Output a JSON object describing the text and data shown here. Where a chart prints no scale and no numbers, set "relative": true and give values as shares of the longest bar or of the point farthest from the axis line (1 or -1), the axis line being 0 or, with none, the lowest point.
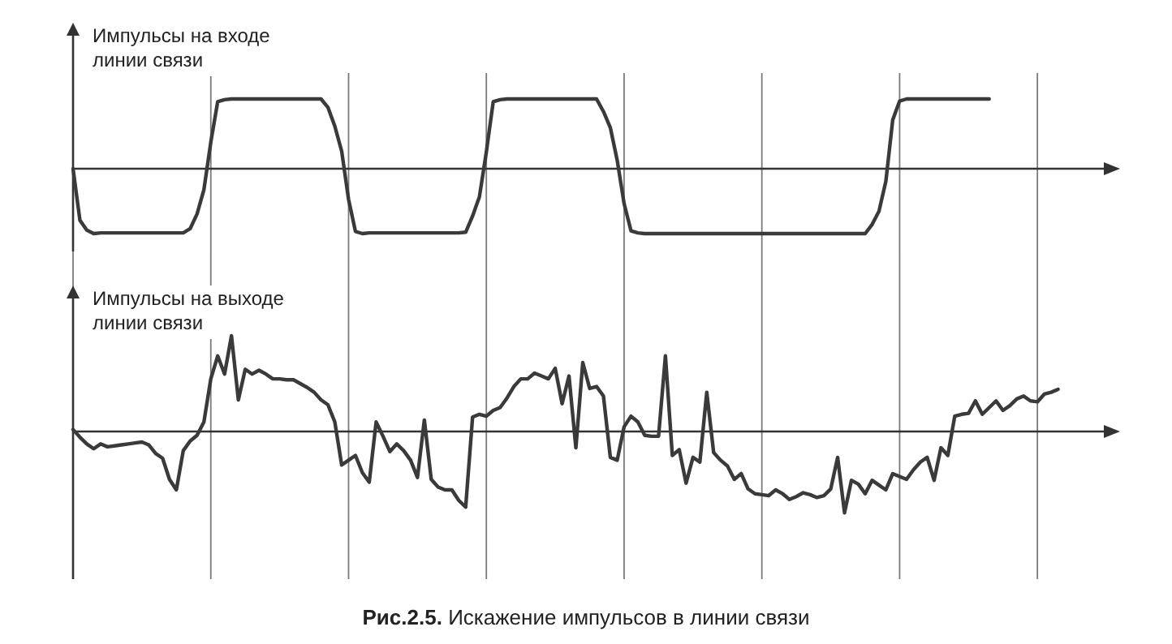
{
  "chart_data": [
    {
      "type": "line",
      "ylabel": "Импульсы на входе линии связи",
      "relative": true,
      "grid": "x",
      "color": "#3a3a3a",
      "categories": [
        null,
        null,
        null,
        null,
        null,
        null,
        null,
        null,
        null,
        null,
        null,
        null,
        null,
        null,
        null,
        null,
        null,
        null,
        null,
        null,
        null,
        null,
        null,
        null,
        null,
        null,
        null,
        null,
        null,
        null,
        null,
        null,
        null,
        null,
        null,
        null,
        null,
        null,
        null,
        null,
        null,
        null,
        null,
        null,
        null,
        null,
        null,
        null,
        null,
        null,
        null,
        null,
        null,
        null,
        null,
        null,
        null,
        null,
        null,
        null,
        null,
        null,
        null,
        null,
        null,
        null,
        null,
        null,
        null,
        null,
        null,
        null,
        null,
        null,
        null,
        null,
        null,
        null,
        null,
        null,
        null,
        null,
        null,
        null,
        null,
        null,
        null,
        null,
        null,
        null,
        null,
        null,
        null,
        null,
        null,
        null,
        null,
        null,
        null,
        null,
        null,
        null,
        null,
        null,
        null,
        null,
        null,
        null,
        null,
        null,
        null,
        null,
        null,
        null,
        null,
        null,
        null,
        null,
        null,
        null,
        null,
        null,
        null,
        null,
        null,
        null,
        null,
        null,
        null,
        null,
        null,
        null,
        null,
        null,
        null,
        null,
        null,
        null,
        null,
        null,
        null,
        null,
        null,
        null,
        null,
        null,
        null,
        null,
        null,
        null,
        null,
        null,
        null
      ],
      "values": [
        0,
        -0.74,
        -0.88,
        -0.93,
        -0.92,
        -0.92,
        -0.92,
        -0.92,
        -0.92,
        -0.92,
        -0.92,
        -0.92,
        -0.92,
        -0.92,
        -0.92,
        -0.92,
        -0.92,
        -0.86,
        -0.65,
        -0.3,
        0.38,
        0.96,
        0.99,
        1,
        1,
        1,
        1,
        1,
        1,
        1,
        1,
        1,
        1,
        1,
        1,
        1,
        1,
        0.88,
        0.61,
        0.25,
        -0.44,
        -0.9,
        -0.93,
        -0.92,
        -0.92,
        -0.92,
        -0.92,
        -0.92,
        -0.92,
        -0.92,
        -0.92,
        -0.92,
        -0.92,
        -0.92,
        -0.92,
        -0.92,
        -0.92,
        -0.91,
        -0.68,
        -0.4,
        0.24,
        0.96,
        0.99,
        1,
        1,
        1,
        1,
        1,
        1,
        1,
        1,
        1,
        1,
        1,
        1,
        1,
        1,
        0.82,
        0.59,
        0.12,
        -0.5,
        -0.89,
        -0.92,
        -0.93,
        -0.93,
        -0.93,
        -0.93,
        -0.93,
        -0.93,
        -0.93,
        -0.93,
        -0.93,
        -0.93,
        -0.93,
        -0.93,
        -0.93,
        -0.93,
        -0.93,
        -0.93,
        -0.93,
        -0.93,
        -0.93,
        -0.93,
        -0.93,
        -0.93,
        -0.93,
        -0.93,
        -0.93,
        -0.93,
        -0.93,
        -0.93,
        -0.93,
        -0.93,
        -0.93,
        -0.93,
        -0.93,
        -0.8,
        -0.61,
        -0.18,
        0.7,
        0.97,
        1,
        1,
        1,
        1,
        1,
        1,
        1,
        1,
        1,
        1,
        1,
        1,
        1,
        null,
        null,
        null,
        null,
        null,
        null,
        null,
        null,
        null,
        null,
        null,
        null,
        null,
        null,
        null,
        null,
        null,
        null,
        null
      ]
    },
    {
      "type": "line",
      "ylabel": "Импульсы на выходе линии связи",
      "relative": true,
      "grid": "x",
      "color": "#3a3a3a",
      "categories": [
        null,
        null,
        null,
        null,
        null,
        null,
        null,
        null,
        null,
        null,
        null,
        null,
        null,
        null,
        null,
        null,
        null,
        null,
        null,
        null,
        null,
        null,
        null,
        null,
        null,
        null,
        null,
        null,
        null,
        null,
        null,
        null,
        null,
        null,
        null,
        null,
        null,
        null,
        null,
        null,
        null,
        null,
        null,
        null,
        null,
        null,
        null,
        null,
        null,
        null,
        null,
        null,
        null,
        null,
        null,
        null,
        null,
        null,
        null,
        null,
        null,
        null,
        null,
        null,
        null,
        null,
        null,
        null,
        null,
        null,
        null,
        null,
        null,
        null,
        null,
        null,
        null,
        null,
        null,
        null,
        null,
        null,
        null,
        null,
        null,
        null,
        null,
        null,
        null,
        null,
        null,
        null,
        null,
        null,
        null,
        null,
        null,
        null,
        null,
        null,
        null,
        null,
        null,
        null,
        null,
        null,
        null,
        null,
        null,
        null,
        null,
        null,
        null,
        null,
        null,
        null,
        null,
        null,
        null,
        null,
        null,
        null,
        null,
        null,
        null,
        null,
        null,
        null,
        null,
        null,
        null,
        null,
        null,
        null,
        null,
        null,
        null,
        null,
        null,
        null,
        null,
        null,
        null,
        null,
        null,
        null,
        null,
        null,
        null,
        null,
        null,
        null,
        null
      ],
      "values": [
        0.02,
        -0.06,
        -0.13,
        -0.18,
        -0.13,
        -0.16,
        -0.15,
        -0.14,
        -0.13,
        -0.12,
        -0.11,
        -0.14,
        -0.23,
        -0.28,
        -0.5,
        -0.61,
        -0.2,
        -0.1,
        -0.04,
        0.1,
        0.55,
        0.79,
        0.6,
        1,
        0.33,
        0.65,
        0.6,
        0.64,
        0.6,
        0.55,
        0.55,
        0.54,
        0.54,
        0.5,
        0.46,
        0.41,
        0.33,
        0.28,
        0.1,
        -0.35,
        -0.3,
        -0.25,
        -0.43,
        -0.53,
        0.1,
        -0.05,
        -0.21,
        -0.13,
        -0.2,
        -0.3,
        -0.48,
        0.12,
        -0.5,
        -0.58,
        -0.61,
        -0.61,
        -0.72,
        -0.79,
        0.15,
        0.18,
        0.16,
        0.22,
        0.25,
        0.35,
        0.47,
        0.55,
        0.55,
        0.61,
        0.58,
        0.55,
        0.66,
        0.29,
        0.58,
        -0.17,
        0.72,
        0.45,
        0.47,
        0.37,
        -0.27,
        -0.3,
        0.05,
        0.16,
        0.1,
        -0.04,
        -0.05,
        -0.05,
        0.79,
        -0.25,
        -0.19,
        -0.54,
        -0.27,
        -0.32,
        0.41,
        -0.22,
        -0.3,
        -0.36,
        -0.5,
        -0.44,
        -0.6,
        -0.65,
        -0.66,
        -0.67,
        -0.61,
        -0.65,
        -0.71,
        -0.68,
        -0.64,
        -0.66,
        -0.69,
        -0.67,
        -0.6,
        -0.27,
        -0.85,
        -0.51,
        -0.55,
        -0.65,
        -0.51,
        -0.56,
        -0.61,
        -0.44,
        -0.47,
        -0.5,
        -0.4,
        -0.32,
        -0.27,
        -0.51,
        -0.17,
        -0.25,
        0.16,
        0.18,
        0.19,
        0.32,
        0.18,
        0.25,
        0.32,
        0.22,
        0.27,
        0.34,
        0.37,
        0.32,
        0.31,
        0.39,
        0.41,
        0.44,
        null,
        null,
        null,
        null,
        null,
        null,
        null,
        null,
        null
      ],
      "annotations": [
        "Рис.2.5. Искажение импульсов в линии связи"
      ]
    }
  ]
}
